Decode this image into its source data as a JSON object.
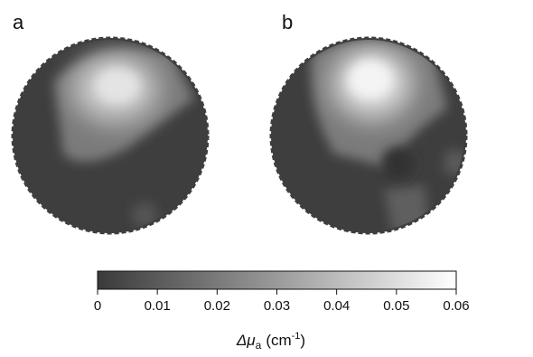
{
  "panels": [
    {
      "label": "a"
    },
    {
      "label": "b"
    }
  ],
  "colorbar": {
    "range": [
      0,
      0.06
    ],
    "ticks": [
      0,
      0.01,
      0.02,
      0.03,
      0.04,
      0.05,
      0.06
    ],
    "label": {
      "symbol": "Δμ",
      "subscript": "a",
      "unit": "(cm",
      "exponent": "-1",
      "close": ")"
    }
  }
}
